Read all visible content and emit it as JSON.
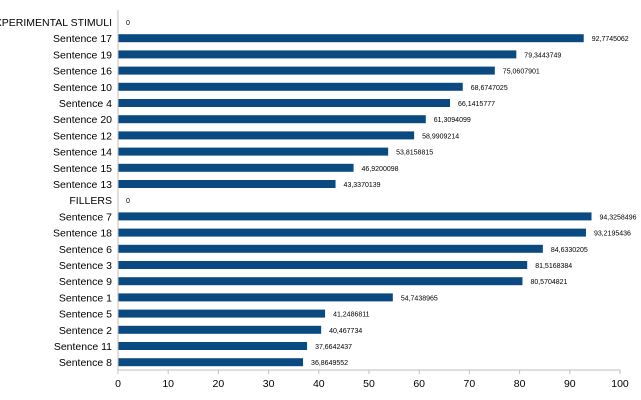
{
  "chart_data": {
    "type": "bar",
    "orientation": "horizontal",
    "categories": [
      "EXPERIMENTAL STIMULI",
      "Sentence 17",
      "Sentence 19",
      "Sentence 16",
      "Sentence 10",
      "Sentence 4",
      "Sentence 20",
      "Sentence 12",
      "Sentence 14",
      "Sentence 15",
      "Sentence 13",
      "FILLERS",
      "Sentence 7",
      "Sentence 18",
      "Sentence 6",
      "Sentence 3",
      "Sentence 9",
      "Sentence 1",
      "Sentence 5",
      "Sentence 2",
      "Sentence 11",
      "Sentence 8"
    ],
    "values": [
      0,
      92.7745062,
      79.3443749,
      75.0607901,
      68.6747025,
      66.1415777,
      61.3094099,
      58.9909214,
      53.8158815,
      46.9200098,
      43.3370139,
      0,
      94.3258496,
      93.2195436,
      84.6330205,
      81.5168384,
      80.5704821,
      54.7438965,
      41.2486811,
      40.467734,
      37.6642437,
      36.8649552
    ],
    "value_labels": [
      "0",
      "92,7745062",
      "79,3443749",
      "75,0607901",
      "68,6747025",
      "66,1415777",
      "61,3094099",
      "58,9909214",
      "53,8158815",
      "46,9200098",
      "43,3370139",
      "0",
      "94,3258496",
      "93,2195436",
      "84,6330205",
      "81,5168384",
      "80,5704821",
      "54,7438965",
      "41,2486811",
      "40,467734",
      "37,6642437",
      "36,8649552"
    ],
    "x_ticks": [
      "0",
      "10",
      "20",
      "30",
      "40",
      "50",
      "60",
      "70",
      "80",
      "90",
      "100"
    ],
    "xlim": [
      0,
      100
    ],
    "grid": false,
    "bar_color": "#0b4a80",
    "axis_color": "#bfbfbf",
    "title": "",
    "xlabel": "",
    "ylabel": ""
  }
}
